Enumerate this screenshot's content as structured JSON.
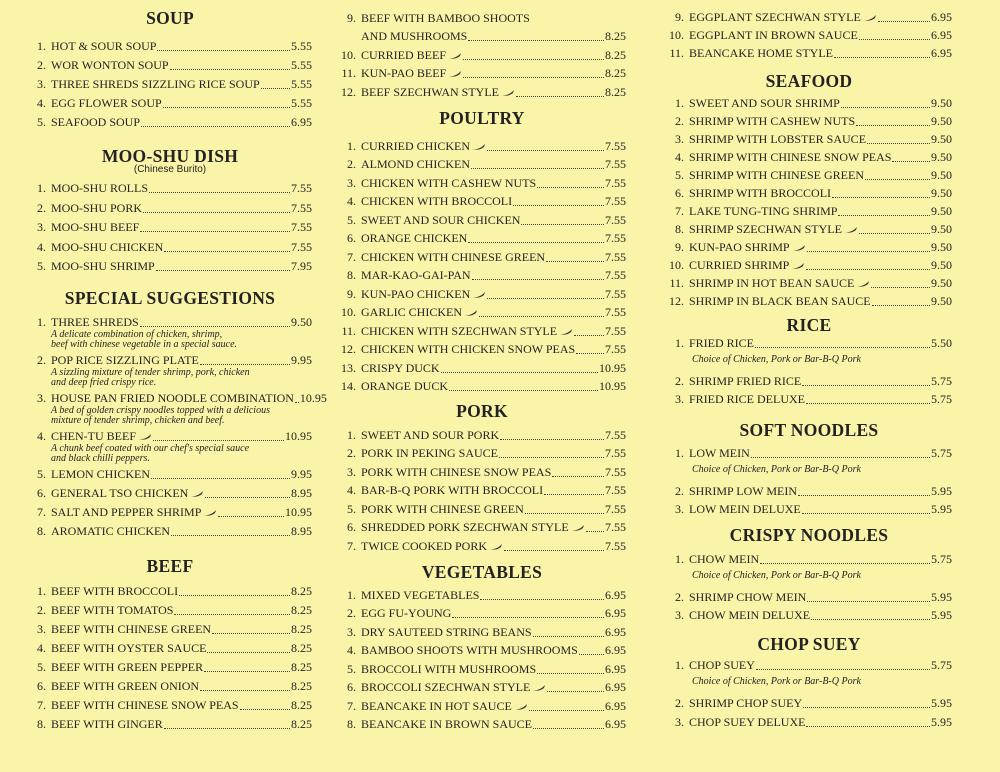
{
  "colors": {
    "paper": "#faf4a8",
    "ink": "#222222"
  },
  "columns": [
    {
      "sections": [
        {
          "title": "SOUP",
          "items": [
            {
              "num": "1.",
              "name": "HOT & SOUR SOUP",
              "price": "5.55"
            },
            {
              "num": "2.",
              "name": "WOR WONTON SOUP",
              "price": "5.55"
            },
            {
              "num": "3.",
              "name": "THREE SHREDS SIZZLING RICE SOUP",
              "price": "5.55"
            },
            {
              "num": "4.",
              "name": "EGG FLOWER SOUP",
              "price": "5.55"
            },
            {
              "num": "5.",
              "name": "SEAFOOD SOUP",
              "price": "6.95"
            }
          ]
        },
        {
          "title": "MOO-SHU DISH",
          "subtitle": "(Chinese Burito)",
          "items": [
            {
              "num": "1.",
              "name": "MOO-SHU ROLLS",
              "price": "7.55"
            },
            {
              "num": "2.",
              "name": "MOO-SHU PORK",
              "price": "7.55"
            },
            {
              "num": "3.",
              "name": "MOO-SHU BEEF",
              "price": "7.55"
            },
            {
              "num": "4.",
              "name": "MOO-SHU CHICKEN",
              "price": "7.55"
            },
            {
              "num": "5.",
              "name": "MOO-SHU SHRIMP",
              "price": "7.95"
            }
          ]
        },
        {
          "title": "SPECIAL SUGGESTIONS",
          "items": [
            {
              "num": "1.",
              "name": "THREE SHREDS",
              "price": "9.50",
              "note": "A delicate combination of chicken, shrimp,\nbeef with chinese vegetable in a special sauce."
            },
            {
              "num": "2.",
              "name": "POP RICE SIZZLING PLATE",
              "price": "9.95",
              "note": "A sizzling mixture of tender shrimp, pork, chicken\nand deep fried crispy rice."
            },
            {
              "num": "3.",
              "name": "HOUSE PAN FRIED NOODLE COMBINATION",
              "price": "10.95",
              "note": "A bed of golden crispy noodles topped with a delicious\nmixture of tender shrimp, chicken and beef."
            },
            {
              "num": "4.",
              "name": "CHEN-TU BEEF",
              "price": "10.95",
              "spicy": true,
              "note": "A chunk beef coated with our chef's special sauce\nand black chilli peppers."
            },
            {
              "num": "5.",
              "name": "LEMON CHICKEN",
              "price": "9.95"
            },
            {
              "num": "6.",
              "name": "GENERAL TSO CHICKEN",
              "price": "8.95",
              "spicy": true
            },
            {
              "num": "7.",
              "name": "SALT AND PEPPER SHRIMP",
              "price": "10.95",
              "spicy": true
            },
            {
              "num": "8.",
              "name": "AROMATIC CHICKEN",
              "price": "8.95"
            }
          ]
        },
        {
          "title": "BEEF",
          "items": [
            {
              "num": "1.",
              "name": "BEEF WITH BROCCOLI",
              "price": "8.25"
            },
            {
              "num": "2.",
              "name": "BEEF WITH TOMATOS",
              "price": "8.25"
            },
            {
              "num": "3.",
              "name": "BEEF WITH CHINESE GREEN",
              "price": "8.25"
            },
            {
              "num": "4.",
              "name": "BEEF WITH OYSTER SAUCE",
              "price": "8.25"
            },
            {
              "num": "5.",
              "name": "BEEF WITH GREEN PEPPER",
              "price": "8.25"
            },
            {
              "num": "6.",
              "name": "BEEF WITH GREEN ONION",
              "price": "8.25"
            },
            {
              "num": "7.",
              "name": "BEEF WITH CHINESE SNOW PEAS",
              "price": "8.25"
            },
            {
              "num": "8.",
              "name": "BEEF WITH GINGER",
              "price": "8.25"
            }
          ]
        }
      ]
    },
    {
      "sections": [
        {
          "title": "",
          "items": [
            {
              "num": "9.",
              "name": "BEEF WITH BAMBOO SHOOTS",
              "name2": "AND MUSHROOMS",
              "price": "8.25"
            },
            {
              "num": "10.",
              "name": "CURRIED BEEF",
              "price": "8.25",
              "spicy": true
            },
            {
              "num": "11.",
              "name": "KUN-PAO BEEF",
              "price": "8.25",
              "spicy": true
            },
            {
              "num": "12.",
              "name": "BEEF SZECHWAN STYLE",
              "price": "8.25",
              "spicy": true
            }
          ]
        },
        {
          "title": "POULTRY",
          "items": [
            {
              "num": "1.",
              "name": "CURRIED CHICKEN",
              "price": "7.55",
              "spicy": true
            },
            {
              "num": "2.",
              "name": "ALMOND CHICKEN",
              "price": "7.55"
            },
            {
              "num": "3.",
              "name": "CHICKEN WITH CASHEW NUTS",
              "price": "7.55"
            },
            {
              "num": "4.",
              "name": "CHICKEN WITH BROCCOLI",
              "price": "7.55"
            },
            {
              "num": "5.",
              "name": "SWEET AND SOUR CHICKEN",
              "price": "7.55"
            },
            {
              "num": "6.",
              "name": "ORANGE CHICKEN",
              "price": "7.55"
            },
            {
              "num": "7.",
              "name": "CHICKEN WITH CHINESE GREEN",
              "price": "7.55"
            },
            {
              "num": "8.",
              "name": "MAR-KAO-GAI-PAN",
              "price": "7.55"
            },
            {
              "num": "9.",
              "name": "KUN-PAO CHICKEN",
              "price": "7.55",
              "spicy": true
            },
            {
              "num": "10.",
              "name": "GARLIC CHICKEN",
              "price": "7.55",
              "spicy": true
            },
            {
              "num": "11.",
              "name": "CHICKEN WITH SZECHWAN STYLE",
              "price": "7.55",
              "spicy": true
            },
            {
              "num": "12.",
              "name": "CHICKEN WITH CHICKEN SNOW PEAS",
              "price": "7.55"
            },
            {
              "num": "13.",
              "name": "CRISPY DUCK",
              "price": "10.95"
            },
            {
              "num": "14.",
              "name": "ORANGE DUCK",
              "price": "10.95"
            }
          ]
        },
        {
          "title": "PORK",
          "items": [
            {
              "num": "1.",
              "name": "SWEET AND SOUR PORK",
              "price": "7.55"
            },
            {
              "num": "2.",
              "name": "PORK IN PEKING SAUCE",
              "price": "7.55"
            },
            {
              "num": "3.",
              "name": "PORK WITH CHINESE SNOW PEAS",
              "price": "7.55"
            },
            {
              "num": "4.",
              "name": "BAR-B-Q PORK WITH BROCCOLI",
              "price": "7.55"
            },
            {
              "num": "5.",
              "name": "PORK WITH CHINESE GREEN",
              "price": "7.55"
            },
            {
              "num": "6.",
              "name": "SHREDDED PORK SZECHWAN STYLE",
              "price": "7.55",
              "spicy": true
            },
            {
              "num": "7.",
              "name": "TWICE COOKED PORK",
              "price": "7.55",
              "spicy": true
            }
          ]
        },
        {
          "title": "VEGETABLES",
          "items": [
            {
              "num": "1.",
              "name": "MIXED VEGETABLES",
              "price": "6.95"
            },
            {
              "num": "2.",
              "name": "EGG FU-YOUNG",
              "price": "6.95"
            },
            {
              "num": "3.",
              "name": "DRY SAUTEED STRING BEANS",
              "price": "6.95"
            },
            {
              "num": "4.",
              "name": "BAMBOO SHOOTS WITH MUSHROOMS",
              "price": "6.95"
            },
            {
              "num": "5.",
              "name": "BROCCOLI WITH MUSHROOMS",
              "price": "6.95"
            },
            {
              "num": "6.",
              "name": "BROCCOLI SZECHWAN STYLE",
              "price": "6.95",
              "spicy": true
            },
            {
              "num": "7.",
              "name": "BEANCAKE IN HOT SAUCE",
              "price": "6.95",
              "spicy": true
            },
            {
              "num": "8.",
              "name": "BEANCAKE IN BROWN SAUCE",
              "price": "6.95"
            }
          ]
        }
      ]
    },
    {
      "sections": [
        {
          "title": "",
          "items": [
            {
              "num": "9.",
              "name": "EGGPLANT SZECHWAN STYLE",
              "price": "6.95",
              "spicy": true
            },
            {
              "num": "10.",
              "name": "EGGPLANT IN BROWN SAUCE",
              "price": "6.95"
            },
            {
              "num": "11.",
              "name": "BEANCAKE HOME STYLE",
              "price": "6.95"
            }
          ]
        },
        {
          "title": "SEAFOOD",
          "items": [
            {
              "num": "1.",
              "name": "SWEET AND SOUR SHRIMP",
              "price": "9.50"
            },
            {
              "num": "2.",
              "name": "SHRIMP WITH CASHEW NUTS",
              "price": "9.50"
            },
            {
              "num": "3.",
              "name": "SHRIMP WITH LOBSTER SAUCE",
              "price": "9.50"
            },
            {
              "num": "4.",
              "name": "SHRIMP WITH CHINESE SNOW PEAS",
              "price": "9.50"
            },
            {
              "num": "5.",
              "name": "SHRIMP WITH CHINESE GREEN",
              "price": "9.50"
            },
            {
              "num": "6.",
              "name": "SHRIMP WITH BROCCOLI",
              "price": "9.50"
            },
            {
              "num": "7.",
              "name": "LAKE TUNG-TING SHRIMP",
              "price": "9.50"
            },
            {
              "num": "8.",
              "name": "SHRIMP SZECHWAN STYLE",
              "price": "9.50",
              "spicy": true
            },
            {
              "num": "9.",
              "name": "KUN-PAO SHRIMP",
              "price": "9.50",
              "spicy": true
            },
            {
              "num": "10.",
              "name": "CURRIED SHRIMP",
              "price": "9.50",
              "spicy": true
            },
            {
              "num": "11.",
              "name": "SHRIMP IN HOT BEAN SAUCE",
              "price": "9.50",
              "spicy": true
            },
            {
              "num": "12.",
              "name": "SHRIMP IN BLACK BEAN SAUCE",
              "price": "9.50"
            }
          ]
        },
        {
          "title": "RICE",
          "items": [
            {
              "num": "1.",
              "name": "FRIED RICE",
              "price": "5.50",
              "note2": "Choice of Chicken, Pork or Bar-B-Q Pork"
            },
            {
              "num": "2.",
              "name": "SHRIMP FRIED RICE",
              "price": "5.75"
            },
            {
              "num": "3.",
              "name": "FRIED RICE DELUXE",
              "price": "5.75"
            }
          ]
        },
        {
          "title": "SOFT NOODLES",
          "items": [
            {
              "num": "1.",
              "name": "LOW MEIN",
              "price": "5.75",
              "note2": "Choice of Chicken, Pork or Bar-B-Q Pork"
            },
            {
              "num": "2.",
              "name": "SHRIMP LOW MEIN",
              "price": "5.95"
            },
            {
              "num": "3.",
              "name": "LOW MEIN DELUXE",
              "price": "5.95"
            }
          ]
        },
        {
          "title": "CRISPY NOODLES",
          "items": [
            {
              "num": "1.",
              "name": "CHOW MEIN",
              "price": "5.75",
              "note2": "Choice of Chicken, Pork or Bar-B-Q Pork"
            },
            {
              "num": "2.",
              "name": "SHRIMP CHOW MEIN",
              "price": "5.95"
            },
            {
              "num": "3.",
              "name": "CHOW MEIN DELUXE",
              "price": "5.95"
            }
          ]
        },
        {
          "title": "CHOP SUEY",
          "items": [
            {
              "num": "1.",
              "name": "CHOP SUEY",
              "price": "5.75",
              "note2": "Choice of Chicken, Pork or Bar-B-Q Pork"
            },
            {
              "num": "2.",
              "name": "SHRIMP CHOP SUEY",
              "price": "5.95"
            },
            {
              "num": "3.",
              "name": "CHOP SUEY DELUXE",
              "price": "5.95"
            }
          ]
        }
      ]
    }
  ]
}
